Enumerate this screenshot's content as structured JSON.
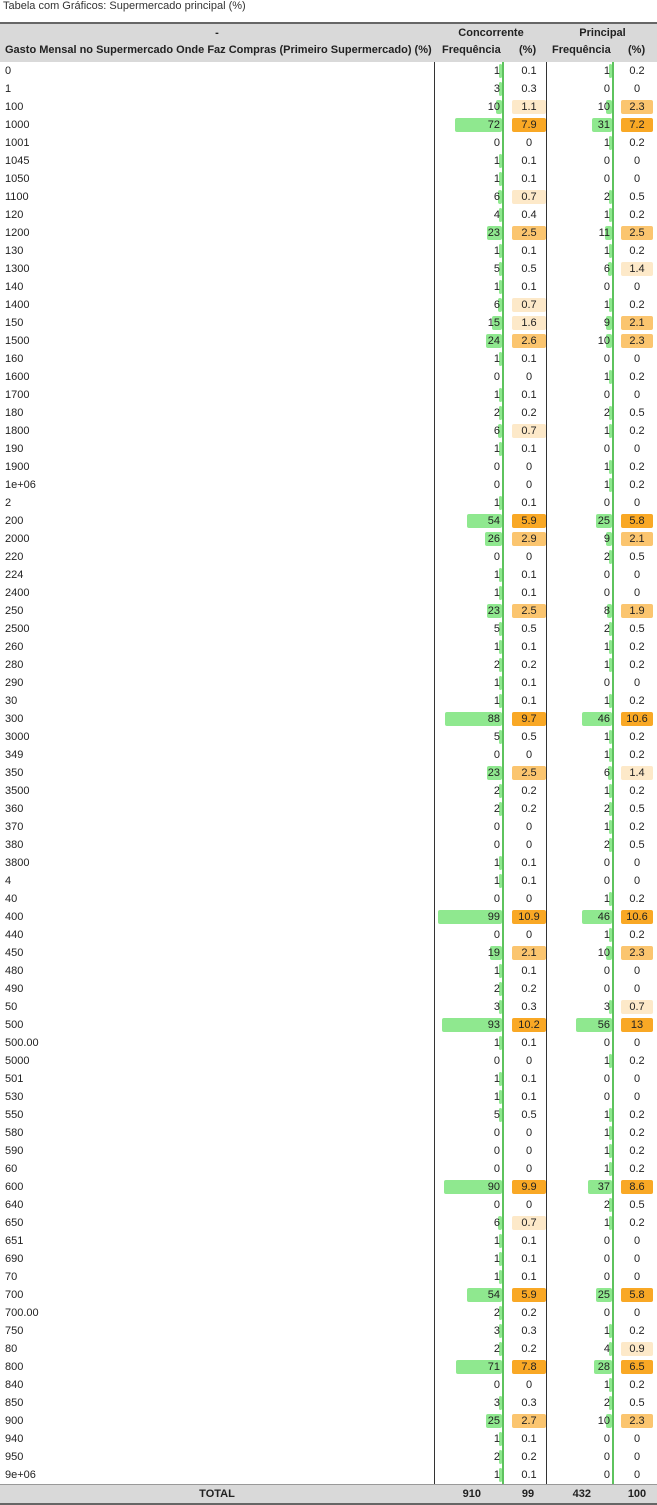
{
  "caption": "Tabela com Gráficos: Supermercado principal (%)",
  "header": {
    "dash": "-",
    "row_label": "Gasto Mensal no Supermercado Onde Faz Compras (Primeiro Supermercado) (%)",
    "group1": "Concorrente",
    "group2": "Principal",
    "freq": "Frequência",
    "pct": "(%)"
  },
  "colors": {
    "bar_green": "#8fe88f",
    "pct_light": "#fde9c9",
    "pct_mid": "#fbc56f",
    "pct_strong": "#f9a825",
    "divider_green": "#5ec35e",
    "header_bg": "#d9d9d9"
  },
  "rows": [
    {
      "k": "0",
      "cf": "1",
      "cp": "0.1",
      "pf": "1",
      "pp": "0.2"
    },
    {
      "k": "1",
      "cf": "3",
      "cp": "0.3",
      "pf": "0",
      "pp": "0"
    },
    {
      "k": "100",
      "cf": "10",
      "cp": "1.1",
      "pf": "10",
      "pp": "2.3"
    },
    {
      "k": "1000",
      "cf": "72",
      "cp": "7.9",
      "pf": "31",
      "pp": "7.2"
    },
    {
      "k": "1001",
      "cf": "0",
      "cp": "0",
      "pf": "1",
      "pp": "0.2"
    },
    {
      "k": "1045",
      "cf": "1",
      "cp": "0.1",
      "pf": "0",
      "pp": "0"
    },
    {
      "k": "1050",
      "cf": "1",
      "cp": "0.1",
      "pf": "0",
      "pp": "0"
    },
    {
      "k": "1100",
      "cf": "6",
      "cp": "0.7",
      "pf": "2",
      "pp": "0.5"
    },
    {
      "k": "120",
      "cf": "4",
      "cp": "0.4",
      "pf": "1",
      "pp": "0.2"
    },
    {
      "k": "1200",
      "cf": "23",
      "cp": "2.5",
      "pf": "11",
      "pp": "2.5"
    },
    {
      "k": "130",
      "cf": "1",
      "cp": "0.1",
      "pf": "1",
      "pp": "0.2"
    },
    {
      "k": "1300",
      "cf": "5",
      "cp": "0.5",
      "pf": "6",
      "pp": "1.4"
    },
    {
      "k": "140",
      "cf": "1",
      "cp": "0.1",
      "pf": "0",
      "pp": "0"
    },
    {
      "k": "1400",
      "cf": "6",
      "cp": "0.7",
      "pf": "1",
      "pp": "0.2"
    },
    {
      "k": "150",
      "cf": "15",
      "cp": "1.6",
      "pf": "9",
      "pp": "2.1"
    },
    {
      "k": "1500",
      "cf": "24",
      "cp": "2.6",
      "pf": "10",
      "pp": "2.3"
    },
    {
      "k": "160",
      "cf": "1",
      "cp": "0.1",
      "pf": "0",
      "pp": "0"
    },
    {
      "k": "1600",
      "cf": "0",
      "cp": "0",
      "pf": "1",
      "pp": "0.2"
    },
    {
      "k": "1700",
      "cf": "1",
      "cp": "0.1",
      "pf": "0",
      "pp": "0"
    },
    {
      "k": "180",
      "cf": "2",
      "cp": "0.2",
      "pf": "2",
      "pp": "0.5"
    },
    {
      "k": "1800",
      "cf": "6",
      "cp": "0.7",
      "pf": "1",
      "pp": "0.2"
    },
    {
      "k": "190",
      "cf": "1",
      "cp": "0.1",
      "pf": "0",
      "pp": "0"
    },
    {
      "k": "1900",
      "cf": "0",
      "cp": "0",
      "pf": "1",
      "pp": "0.2"
    },
    {
      "k": "1e+06",
      "cf": "0",
      "cp": "0",
      "pf": "1",
      "pp": "0.2"
    },
    {
      "k": "2",
      "cf": "1",
      "cp": "0.1",
      "pf": "0",
      "pp": "0"
    },
    {
      "k": "200",
      "cf": "54",
      "cp": "5.9",
      "pf": "25",
      "pp": "5.8"
    },
    {
      "k": "2000",
      "cf": "26",
      "cp": "2.9",
      "pf": "9",
      "pp": "2.1"
    },
    {
      "k": "220",
      "cf": "0",
      "cp": "0",
      "pf": "2",
      "pp": "0.5"
    },
    {
      "k": "224",
      "cf": "1",
      "cp": "0.1",
      "pf": "0",
      "pp": "0"
    },
    {
      "k": "2400",
      "cf": "1",
      "cp": "0.1",
      "pf": "0",
      "pp": "0"
    },
    {
      "k": "250",
      "cf": "23",
      "cp": "2.5",
      "pf": "8",
      "pp": "1.9"
    },
    {
      "k": "2500",
      "cf": "5",
      "cp": "0.5",
      "pf": "2",
      "pp": "0.5"
    },
    {
      "k": "260",
      "cf": "1",
      "cp": "0.1",
      "pf": "1",
      "pp": "0.2"
    },
    {
      "k": "280",
      "cf": "2",
      "cp": "0.2",
      "pf": "1",
      "pp": "0.2"
    },
    {
      "k": "290",
      "cf": "1",
      "cp": "0.1",
      "pf": "0",
      "pp": "0"
    },
    {
      "k": "30",
      "cf": "1",
      "cp": "0.1",
      "pf": "1",
      "pp": "0.2"
    },
    {
      "k": "300",
      "cf": "88",
      "cp": "9.7",
      "pf": "46",
      "pp": "10.6"
    },
    {
      "k": "3000",
      "cf": "5",
      "cp": "0.5",
      "pf": "1",
      "pp": "0.2"
    },
    {
      "k": "349",
      "cf": "0",
      "cp": "0",
      "pf": "1",
      "pp": "0.2"
    },
    {
      "k": "350",
      "cf": "23",
      "cp": "2.5",
      "pf": "6",
      "pp": "1.4"
    },
    {
      "k": "3500",
      "cf": "2",
      "cp": "0.2",
      "pf": "1",
      "pp": "0.2"
    },
    {
      "k": "360",
      "cf": "2",
      "cp": "0.2",
      "pf": "2",
      "pp": "0.5"
    },
    {
      "k": "370",
      "cf": "0",
      "cp": "0",
      "pf": "1",
      "pp": "0.2"
    },
    {
      "k": "380",
      "cf": "0",
      "cp": "0",
      "pf": "2",
      "pp": "0.5"
    },
    {
      "k": "3800",
      "cf": "1",
      "cp": "0.1",
      "pf": "0",
      "pp": "0"
    },
    {
      "k": "4",
      "cf": "1",
      "cp": "0.1",
      "pf": "0",
      "pp": "0"
    },
    {
      "k": "40",
      "cf": "0",
      "cp": "0",
      "pf": "1",
      "pp": "0.2"
    },
    {
      "k": "400",
      "cf": "99",
      "cp": "10.9",
      "pf": "46",
      "pp": "10.6"
    },
    {
      "k": "440",
      "cf": "0",
      "cp": "0",
      "pf": "1",
      "pp": "0.2"
    },
    {
      "k": "450",
      "cf": "19",
      "cp": "2.1",
      "pf": "10",
      "pp": "2.3"
    },
    {
      "k": "480",
      "cf": "1",
      "cp": "0.1",
      "pf": "0",
      "pp": "0"
    },
    {
      "k": "490",
      "cf": "2",
      "cp": "0.2",
      "pf": "0",
      "pp": "0"
    },
    {
      "k": "50",
      "cf": "3",
      "cp": "0.3",
      "pf": "3",
      "pp": "0.7"
    },
    {
      "k": "500",
      "cf": "93",
      "cp": "10.2",
      "pf": "56",
      "pp": "13"
    },
    {
      "k": "500.00",
      "cf": "1",
      "cp": "0.1",
      "pf": "0",
      "pp": "0"
    },
    {
      "k": "5000",
      "cf": "0",
      "cp": "0",
      "pf": "1",
      "pp": "0.2"
    },
    {
      "k": "501",
      "cf": "1",
      "cp": "0.1",
      "pf": "0",
      "pp": "0"
    },
    {
      "k": "530",
      "cf": "1",
      "cp": "0.1",
      "pf": "0",
      "pp": "0"
    },
    {
      "k": "550",
      "cf": "5",
      "cp": "0.5",
      "pf": "1",
      "pp": "0.2"
    },
    {
      "k": "580",
      "cf": "0",
      "cp": "0",
      "pf": "1",
      "pp": "0.2"
    },
    {
      "k": "590",
      "cf": "0",
      "cp": "0",
      "pf": "1",
      "pp": "0.2"
    },
    {
      "k": "60",
      "cf": "0",
      "cp": "0",
      "pf": "1",
      "pp": "0.2"
    },
    {
      "k": "600",
      "cf": "90",
      "cp": "9.9",
      "pf": "37",
      "pp": "8.6"
    },
    {
      "k": "640",
      "cf": "0",
      "cp": "0",
      "pf": "2",
      "pp": "0.5"
    },
    {
      "k": "650",
      "cf": "6",
      "cp": "0.7",
      "pf": "1",
      "pp": "0.2"
    },
    {
      "k": "651",
      "cf": "1",
      "cp": "0.1",
      "pf": "0",
      "pp": "0"
    },
    {
      "k": "690",
      "cf": "1",
      "cp": "0.1",
      "pf": "0",
      "pp": "0"
    },
    {
      "k": "70",
      "cf": "1",
      "cp": "0.1",
      "pf": "0",
      "pp": "0"
    },
    {
      "k": "700",
      "cf": "54",
      "cp": "5.9",
      "pf": "25",
      "pp": "5.8"
    },
    {
      "k": "700.00",
      "cf": "2",
      "cp": "0.2",
      "pf": "0",
      "pp": "0"
    },
    {
      "k": "750",
      "cf": "3",
      "cp": "0.3",
      "pf": "1",
      "pp": "0.2"
    },
    {
      "k": "80",
      "cf": "2",
      "cp": "0.2",
      "pf": "4",
      "pp": "0.9"
    },
    {
      "k": "800",
      "cf": "71",
      "cp": "7.8",
      "pf": "28",
      "pp": "6.5"
    },
    {
      "k": "840",
      "cf": "0",
      "cp": "0",
      "pf": "1",
      "pp": "0.2"
    },
    {
      "k": "850",
      "cf": "3",
      "cp": "0.3",
      "pf": "2",
      "pp": "0.5"
    },
    {
      "k": "900",
      "cf": "25",
      "cp": "2.7",
      "pf": "10",
      "pp": "2.3"
    },
    {
      "k": "940",
      "cf": "1",
      "cp": "0.1",
      "pf": "0",
      "pp": "0"
    },
    {
      "k": "950",
      "cf": "2",
      "cp": "0.2",
      "pf": "0",
      "pp": "0"
    },
    {
      "k": "9e+06",
      "cf": "1",
      "cp": "0.1",
      "pf": "0",
      "pp": "0"
    }
  ],
  "total": {
    "label": "TOTAL",
    "cf": "910",
    "cp": "99",
    "pf": "432",
    "pp": "100"
  }
}
